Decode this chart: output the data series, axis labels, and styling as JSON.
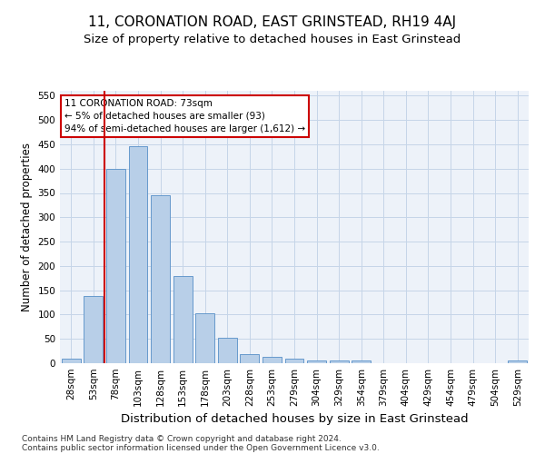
{
  "title": "11, CORONATION ROAD, EAST GRINSTEAD, RH19 4AJ",
  "subtitle": "Size of property relative to detached houses in East Grinstead",
  "xlabel": "Distribution of detached houses by size in East Grinstead",
  "ylabel": "Number of detached properties",
  "footer_line1": "Contains HM Land Registry data © Crown copyright and database right 2024.",
  "footer_line2": "Contains public sector information licensed under the Open Government Licence v3.0.",
  "bar_labels": [
    "28sqm",
    "53sqm",
    "78sqm",
    "103sqm",
    "128sqm",
    "153sqm",
    "178sqm",
    "203sqm",
    "228sqm",
    "253sqm",
    "279sqm",
    "304sqm",
    "329sqm",
    "354sqm",
    "379sqm",
    "404sqm",
    "429sqm",
    "454sqm",
    "479sqm",
    "504sqm",
    "529sqm"
  ],
  "bar_values": [
    10,
    138,
    400,
    447,
    345,
    180,
    102,
    53,
    18,
    14,
    10,
    6,
    5,
    5,
    0,
    0,
    0,
    0,
    0,
    0,
    5
  ],
  "bar_color": "#b8cfe8",
  "bar_edgecolor": "#6699cc",
  "ylim": [
    0,
    560
  ],
  "yticks": [
    0,
    50,
    100,
    150,
    200,
    250,
    300,
    350,
    400,
    450,
    500,
    550
  ],
  "vline_x": 1.5,
  "vline_color": "#cc0000",
  "annotation_text": "11 CORONATION ROAD: 73sqm\n← 5% of detached houses are smaller (93)\n94% of semi-detached houses are larger (1,612) →",
  "annotation_box_color": "#cc0000",
  "bg_color": "#edf2f9",
  "grid_color": "#c5d5e8",
  "title_fontsize": 11,
  "subtitle_fontsize": 9.5,
  "xlabel_fontsize": 9.5,
  "ylabel_fontsize": 8.5,
  "tick_fontsize": 7.5,
  "annotation_fontsize": 7.5,
  "footer_fontsize": 6.5
}
